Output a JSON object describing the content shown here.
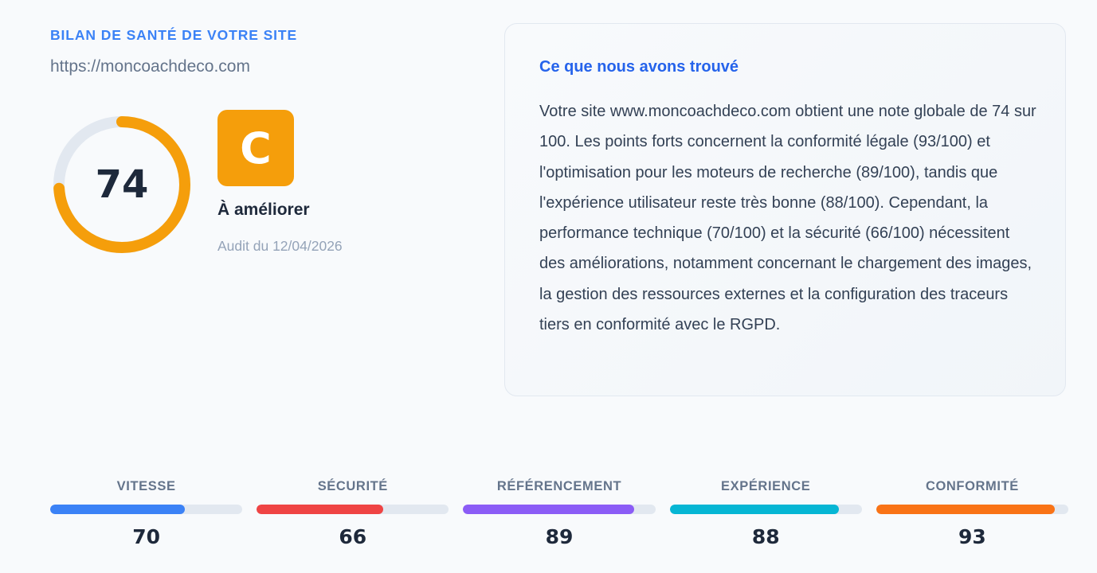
{
  "header": {
    "eyebrow": "BILAN DE SANTÉ DE VOTRE SITE",
    "site_url": "https://moncoachdeco.com"
  },
  "score": {
    "value": 74,
    "max": 100,
    "ring_color": "#f59e0b",
    "track_color": "#e2e8f0"
  },
  "grade": {
    "letter": "C",
    "label": "À améliorer",
    "color": "#f59e0b",
    "audit_date": "Audit du 12/04/2026"
  },
  "findings": {
    "title": "Ce que nous avons trouvé",
    "body": "Votre site www.moncoachdeco.com obtient une note globale de 74 sur 100. Les points forts concernent la conformité légale (93/100) et l'optimisation pour les moteurs de recherche (89/100), tandis que l'expérience utilisateur reste très bonne (88/100). Cependant, la performance technique (70/100) et la sécurité (66/100) nécessitent des améliorations, notamment concernant le chargement des images, la gestion des ressources externes et la configuration des traceurs tiers en conformité avec le RGPD."
  },
  "metrics": [
    {
      "label": "VITESSE",
      "value": 70,
      "color": "#3b82f6"
    },
    {
      "label": "SÉCURITÉ",
      "value": 66,
      "color": "#ef4444"
    },
    {
      "label": "RÉFÉRENCEMENT",
      "value": 89,
      "color": "#8b5cf6"
    },
    {
      "label": "EXPÉRIENCE",
      "value": 88,
      "color": "#06b6d4"
    },
    {
      "label": "CONFORMITÉ",
      "value": 93,
      "color": "#f97316"
    }
  ]
}
